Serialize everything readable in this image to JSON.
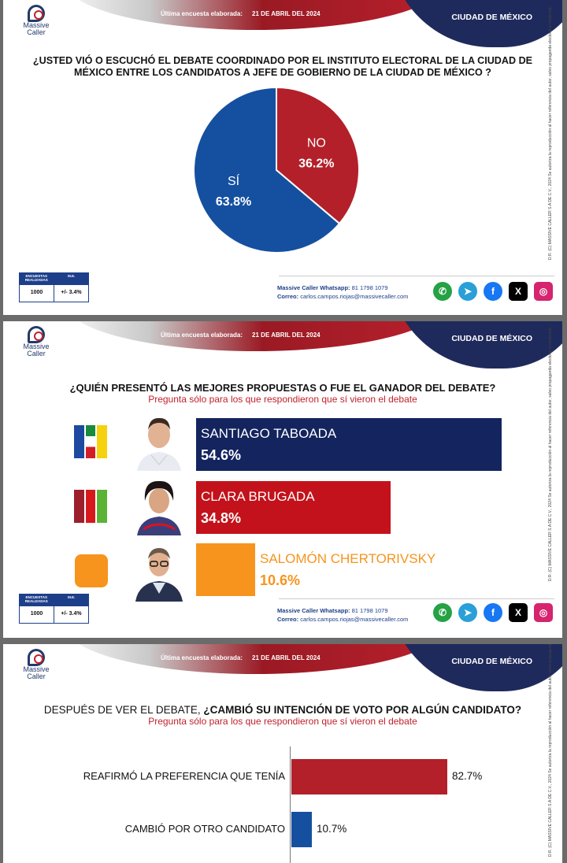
{
  "header": {
    "brand_line1": "Massive",
    "brand_line2": "Caller",
    "survey_label": "Última encuesta elaborada:",
    "survey_date": "21 DE ABRIL DEL 2024",
    "city": "CIUDAD DE MÉXICO"
  },
  "side_note": "D.R. (C) MASSIVE CALLER S.A DE C.V., 2024  Se autoriza la reproducción al hacer referencia del autor, salvo propaganda electoral al contenido.",
  "stats": {
    "col1_head": "ENCUESTAS REALIZADAS",
    "col2_head": "M.E.",
    "col1_value": "1000",
    "col2_value": "+/- 3.4%"
  },
  "contact": {
    "whatsapp_label": "Massive Caller Whatsapp:",
    "whatsapp_value": "81 1798 1079",
    "email_label": "Correo:",
    "email_value": "carlos.campos.riojas@massivecaller.com"
  },
  "socials": [
    {
      "icon": "whatsapp-icon",
      "color": "#25a244",
      "glyph": "✆"
    },
    {
      "icon": "telegram-icon",
      "color": "#2a9fd8",
      "glyph": "➤"
    },
    {
      "icon": "facebook-icon",
      "color": "#1877f2",
      "glyph": "f"
    },
    {
      "icon": "x-icon",
      "color": "#000000",
      "glyph": "X"
    },
    {
      "icon": "instagram-icon",
      "color": "#d6246e",
      "glyph": "◎"
    }
  ],
  "chart_data": [
    {
      "type": "pie",
      "title": "¿USTED VIÓ O ESCUCHÓ EL DEBATE COORDINADO POR EL INSTITUTO ELECTORAL DE LA CIUDAD DE MÉXICO  ENTRE LOS CANDIDATOS A  JEFE DE GOBIERNO DE LA CIUDAD DE MÉXICO ?",
      "slices": [
        {
          "label": "SÍ",
          "value": 63.8,
          "display": "63.8%",
          "color": "#1550a0"
        },
        {
          "label": "NO",
          "value": 36.2,
          "display": "36.2%",
          "color": "#b3202a"
        }
      ]
    },
    {
      "type": "bar",
      "title": "¿QUIÉN PRESENTÓ LAS MEJORES PROPUESTAS O FUE EL GANADOR DEL DEBATE?",
      "subtitle": "Pregunta sólo para los que respondieron  que sí vieron el debate",
      "xlim": [
        0,
        60
      ],
      "bars": [
        {
          "label": "SANTIAGO TABOADA",
          "value": 54.6,
          "display": "54.6%",
          "color": "#13245e",
          "text_color": "#ffffff"
        },
        {
          "label": "CLARA BRUGADA",
          "value": 34.8,
          "display": "34.8%",
          "color": "#c3121b",
          "text_color": "#ffffff"
        },
        {
          "label": "SALOMÓN CHERTORIVSKY",
          "value": 10.6,
          "display": "10.6%",
          "color": "#f7941d",
          "text_color": "#f7941d"
        }
      ]
    },
    {
      "type": "bar",
      "title_plain": "DESPUÉS DE VER EL DEBATE, ",
      "title_bold": "¿CAMBIÓ SU INTENCIÓN DE VOTO POR ALGÚN CANDIDATO?",
      "subtitle": "Pregunta sólo para los que respondieron  que sí vieron el debate",
      "xlim": [
        0,
        100
      ],
      "bars": [
        {
          "label": "REAFIRMÓ LA PREFERENCIA QUE TENÍA",
          "value": 82.7,
          "display": "82.7%",
          "color": "#b3202a"
        },
        {
          "label": "CAMBIÓ POR OTRO CANDIDATO",
          "value": 10.7,
          "display": "10.7%",
          "color": "#1550a0"
        }
      ]
    }
  ]
}
